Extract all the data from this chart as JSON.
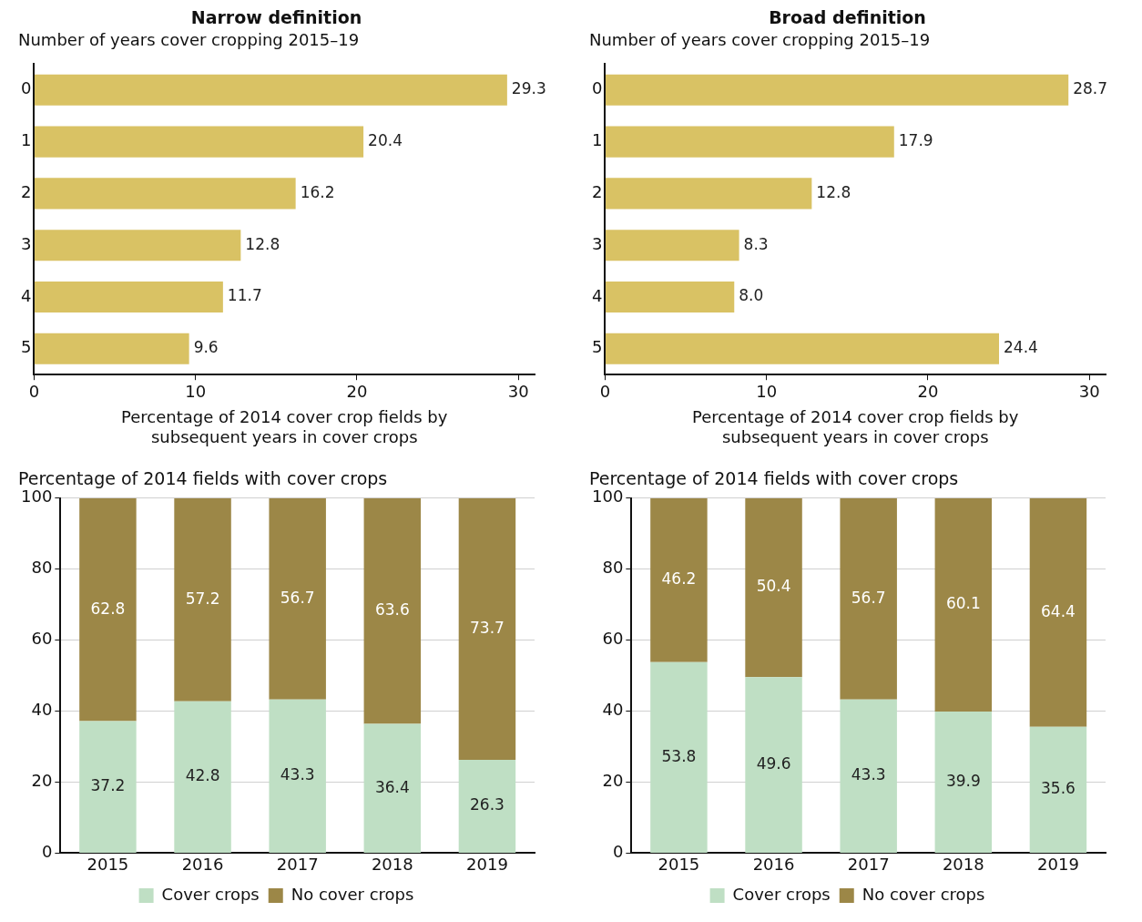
{
  "chart_data": [
    {
      "type": "bar",
      "orientation": "horizontal",
      "title": "Narrow definition",
      "subtitle": "Number of years cover cropping 2015–19",
      "xlabel": "Percentage of 2014 cover crop fields by subsequent years in cover crops",
      "categories": [
        "0",
        "1",
        "2",
        "3",
        "4",
        "5"
      ],
      "values": [
        29.3,
        20.4,
        16.2,
        12.8,
        11.7,
        9.6
      ],
      "value_labels": [
        "29.3",
        "20.4",
        "16.2",
        "12.8",
        "11.7",
        "9.6"
      ],
      "color": "#d9c264",
      "xlim": [
        0,
        31
      ],
      "xticks": [
        0,
        10,
        20,
        30
      ],
      "grid": false,
      "legend": false
    },
    {
      "type": "bar",
      "orientation": "horizontal",
      "title": "Broad definition",
      "subtitle": "Number of years cover cropping 2015–19",
      "xlabel": "Percentage of 2014 cover crop fields by subsequent years in cover crops",
      "categories": [
        "0",
        "1",
        "2",
        "3",
        "4",
        "5"
      ],
      "values": [
        28.7,
        17.9,
        12.8,
        8.3,
        8.0,
        24.4
      ],
      "value_labels": [
        "28.7",
        "17.9",
        "12.8",
        "8.3",
        "8.0",
        "24.4"
      ],
      "color": "#d9c264",
      "xlim": [
        0,
        31
      ],
      "xticks": [
        0,
        10,
        20,
        30
      ],
      "grid": false,
      "legend": false
    },
    {
      "type": "bar",
      "stacked": true,
      "title": "Percentage of 2014 fields with cover crops",
      "categories": [
        "2015",
        "2016",
        "2017",
        "2018",
        "2019"
      ],
      "series": [
        {
          "name": "Cover crops",
          "color": "#bfdfc4",
          "values": [
            37.2,
            42.8,
            43.3,
            36.4,
            26.3
          ]
        },
        {
          "name": "No cover crops",
          "color": "#9c8747",
          "values": [
            62.8,
            57.2,
            56.7,
            63.6,
            73.7
          ]
        }
      ],
      "ylim": [
        0,
        100
      ],
      "yticks": [
        0,
        20,
        40,
        60,
        80,
        100
      ],
      "grid": "y",
      "legend": "bottom",
      "data_labels": true
    },
    {
      "type": "bar",
      "stacked": true,
      "title": "Percentage of 2014 fields with cover crops",
      "categories": [
        "2015",
        "2016",
        "2017",
        "2018",
        "2019"
      ],
      "series": [
        {
          "name": "Cover crops",
          "color": "#bfdfc4",
          "values": [
            53.8,
            49.6,
            43.3,
            39.9,
            35.6
          ]
        },
        {
          "name": "No cover crops",
          "color": "#9c8747",
          "values": [
            46.2,
            50.4,
            56.7,
            60.1,
            64.4
          ]
        }
      ],
      "ylim": [
        0,
        100
      ],
      "yticks": [
        0,
        20,
        40,
        60,
        80,
        100
      ],
      "grid": "y",
      "legend": "bottom",
      "data_labels": true
    }
  ]
}
